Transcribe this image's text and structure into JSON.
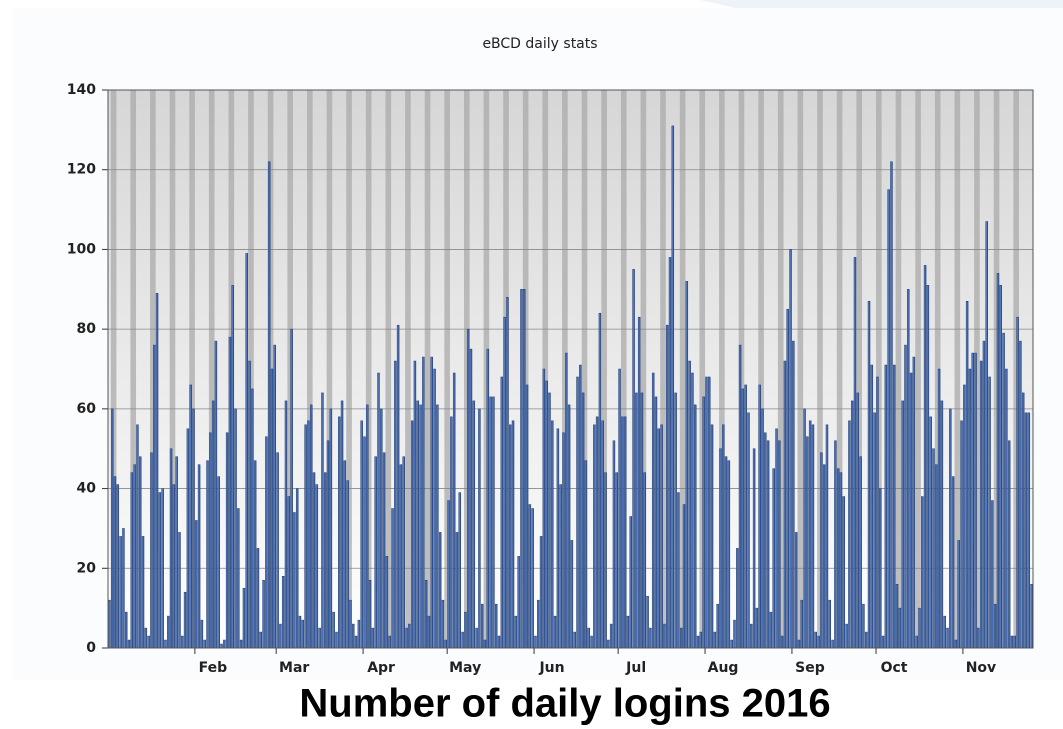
{
  "chart_data": {
    "type": "bar",
    "title": "eBCD daily stats",
    "caption": "Number of daily logins 2016",
    "categories": [
      null,
      null,
      null,
      null,
      null,
      null,
      null,
      null,
      null,
      null,
      null,
      null,
      null,
      null,
      null,
      null,
      null,
      null,
      null,
      null,
      null,
      null,
      null,
      null,
      null,
      null,
      null,
      null,
      null,
      null,
      null,
      "Feb",
      null,
      null,
      null,
      null,
      null,
      null,
      null,
      null,
      null,
      null,
      null,
      null,
      null,
      null,
      null,
      null,
      null,
      null,
      null,
      null,
      null,
      null,
      null,
      null,
      null,
      null,
      null,
      null,
      "Mar",
      null,
      null,
      null,
      null,
      null,
      null,
      null,
      null,
      null,
      null,
      null,
      null,
      null,
      null,
      null,
      null,
      null,
      null,
      null,
      null,
      null,
      null,
      null,
      null,
      null,
      null,
      null,
      null,
      null,
      null,
      "Apr",
      null,
      null,
      null,
      null,
      null,
      null,
      null,
      null,
      null,
      null,
      null,
      null,
      null,
      null,
      null,
      null,
      null,
      null,
      null,
      null,
      null,
      null,
      null,
      null,
      null,
      null,
      null,
      null,
      null,
      "May",
      null,
      null,
      null,
      null,
      null,
      null,
      null,
      null,
      null,
      null,
      null,
      null,
      null,
      null,
      null,
      null,
      null,
      null,
      null,
      null,
      null,
      null,
      null,
      null,
      null,
      null,
      null,
      null,
      null,
      null,
      "Jun",
      null,
      null,
      null,
      null,
      null,
      null,
      null,
      null,
      null,
      null,
      null,
      null,
      null,
      null,
      null,
      null,
      null,
      null,
      null,
      null,
      null,
      null,
      null,
      null,
      null,
      null,
      null,
      null,
      null,
      "Jul",
      null,
      null,
      null,
      null,
      null,
      null,
      null,
      null,
      null,
      null,
      null,
      null,
      null,
      null,
      null,
      null,
      null,
      null,
      null,
      null,
      null,
      null,
      null,
      null,
      null,
      null,
      null,
      null,
      null,
      null,
      "Aug",
      null,
      null,
      null,
      null,
      null,
      null,
      null,
      null,
      null,
      null,
      null,
      null,
      null,
      null,
      null,
      null,
      null,
      null,
      null,
      null,
      null,
      null,
      null,
      null,
      null,
      null,
      null,
      null,
      null,
      null,
      "Sep",
      null,
      null,
      null,
      null,
      null,
      null,
      null,
      null,
      null,
      null,
      null,
      null,
      null,
      null,
      null,
      null,
      null,
      null,
      null,
      null,
      null,
      null,
      null,
      null,
      null,
      null,
      null,
      null,
      null,
      "Oct",
      null,
      null,
      null,
      null,
      null,
      null,
      null,
      null,
      null,
      null,
      null,
      null,
      null,
      null,
      null,
      null,
      null,
      null,
      null,
      null,
      null,
      null,
      null,
      null,
      null,
      null,
      null,
      null,
      null,
      null,
      "Nov",
      null,
      null,
      null,
      null,
      null,
      null,
      null,
      null,
      null,
      null,
      null,
      null,
      null,
      null,
      null,
      null,
      null,
      null,
      null,
      null,
      null,
      null,
      null,
      null
    ],
    "values": [
      12,
      60,
      43,
      41,
      28,
      30,
      9,
      2,
      44,
      46,
      56,
      48,
      28,
      5,
      3,
      49,
      76,
      89,
      39,
      40,
      2,
      8,
      50,
      41,
      48,
      29,
      3,
      14,
      55,
      66,
      60,
      32,
      46,
      7,
      2,
      47,
      54,
      62,
      77,
      43,
      1,
      2,
      54,
      78,
      91,
      60,
      35,
      2,
      15,
      99,
      72,
      65,
      47,
      25,
      4,
      17,
      53,
      122,
      70,
      76,
      49,
      6,
      18,
      62,
      38,
      80,
      34,
      40,
      8,
      7,
      56,
      57,
      61,
      44,
      41,
      5,
      64,
      44,
      52,
      60,
      9,
      4,
      58,
      62,
      47,
      42,
      12,
      6,
      3,
      7,
      57,
      53,
      61,
      17,
      5,
      48,
      69,
      60,
      49,
      23,
      3,
      35,
      72,
      81,
      46,
      48,
      5,
      6,
      57,
      72,
      62,
      61,
      73,
      17,
      8,
      73,
      70,
      61,
      29,
      12,
      2,
      37,
      58,
      69,
      29,
      39,
      4,
      9,
      80,
      75,
      62,
      5,
      60,
      11,
      2,
      75,
      63,
      63,
      11,
      3,
      68,
      83,
      88,
      56,
      57,
      8,
      23,
      90,
      90,
      66,
      36,
      35,
      3,
      12,
      28,
      70,
      67,
      64,
      57,
      8,
      55,
      41,
      54,
      74,
      61,
      27,
      4,
      68,
      71,
      64,
      47,
      5,
      3,
      56,
      58,
      84,
      57,
      44,
      2,
      6,
      52,
      44,
      70,
      58,
      58,
      8,
      33,
      95,
      64,
      83,
      64,
      44,
      13,
      5,
      69,
      63,
      55,
      56,
      6,
      81,
      98,
      131,
      64,
      39,
      5,
      36,
      92,
      72,
      69,
      61,
      3,
      4,
      63,
      68,
      68,
      56,
      4,
      11,
      50,
      56,
      48,
      47,
      2,
      7,
      25,
      76,
      65,
      66,
      59,
      6,
      50,
      10,
      66,
      60,
      54,
      52,
      9,
      45,
      55,
      52,
      3,
      72,
      85,
      100,
      77,
      29,
      2,
      12,
      60,
      53,
      57,
      56,
      4,
      3,
      49,
      46,
      56,
      12,
      2,
      52,
      45,
      44,
      38,
      6,
      57,
      62,
      98,
      64,
      48,
      11,
      4,
      87,
      71,
      59,
      68,
      40,
      3,
      71,
      115,
      122,
      71,
      16,
      10,
      62,
      76,
      90,
      69,
      73,
      3,
      10,
      38,
      96,
      91,
      58,
      50,
      46,
      70,
      62,
      8,
      5,
      60,
      43,
      2,
      27,
      57,
      66,
      87,
      70,
      74,
      74,
      5,
      72,
      77,
      107,
      68,
      37,
      11,
      94,
      91,
      79,
      70,
      52,
      3,
      3,
      83,
      77,
      64,
      59,
      59,
      16
    ],
    "color": "#3d64a8",
    "ylim": [
      0,
      140
    ],
    "yticks": [
      0,
      20,
      40,
      60,
      80,
      100,
      120,
      140
    ],
    "grid": true
  }
}
